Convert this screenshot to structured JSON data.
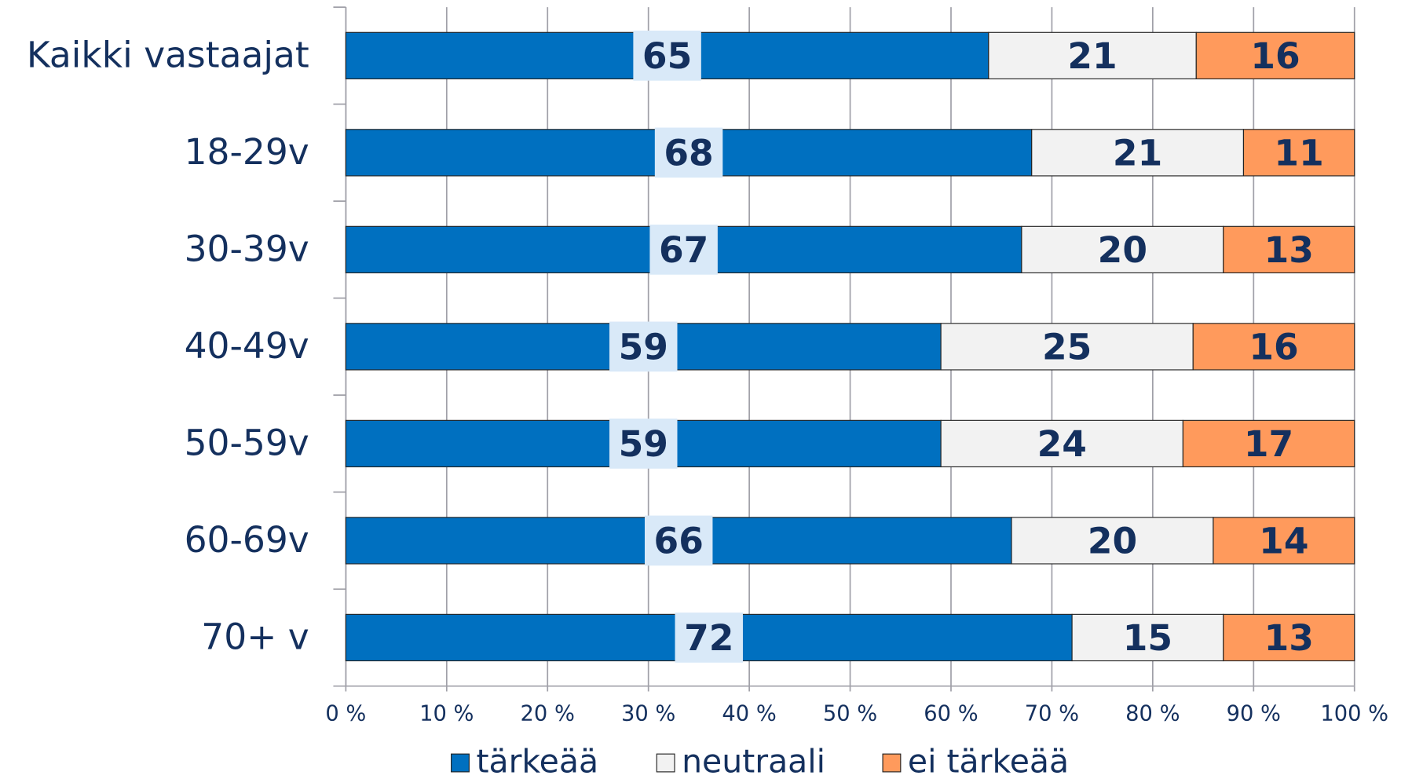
{
  "chart_data": {
    "type": "bar",
    "orientation": "horizontal",
    "stacking": "percent",
    "categories": [
      "Kaikki vastaajat",
      "18-29v",
      "30-39v",
      "40-49v",
      "50-59v",
      "60-69v",
      "70+ v"
    ],
    "series": [
      {
        "name": "tärkeää",
        "color": "#0070c0",
        "values": [
          65,
          68,
          67,
          59,
          59,
          66,
          72
        ]
      },
      {
        "name": "neutraali",
        "color": "#f2f2f2",
        "values": [
          21,
          21,
          20,
          25,
          24,
          20,
          15
        ]
      },
      {
        "name": "ei tärkeää",
        "color": "#ff9a5c",
        "values": [
          16,
          11,
          13,
          16,
          17,
          14,
          13
        ]
      }
    ],
    "xlim": [
      0,
      100
    ],
    "xticks": [
      {
        "value": 0,
        "label": "0 %"
      },
      {
        "value": 10,
        "label": "10 %"
      },
      {
        "value": 20,
        "label": "20 %"
      },
      {
        "value": 30,
        "label": "30 %"
      },
      {
        "value": 40,
        "label": "40 %"
      },
      {
        "value": 50,
        "label": "50 %"
      },
      {
        "value": 60,
        "label": "60 %"
      },
      {
        "value": 70,
        "label": "70 %"
      },
      {
        "value": 80,
        "label": "80 %"
      },
      {
        "value": 90,
        "label": "90 %"
      },
      {
        "value": 100,
        "label": "100 %"
      }
    ],
    "grid": true,
    "legend": "bottom"
  }
}
